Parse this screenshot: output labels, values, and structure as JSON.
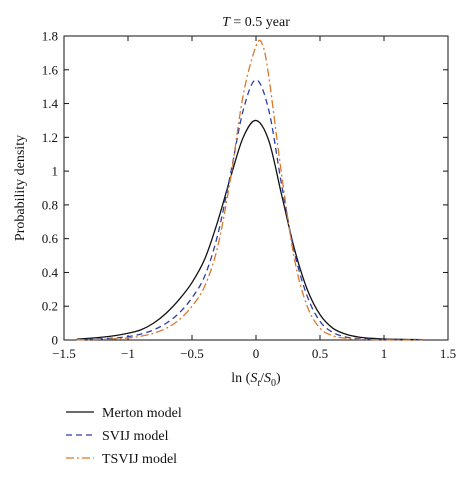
{
  "chart_data": {
    "type": "line",
    "title_var": "T",
    "title_rest": " = 0.5 year",
    "xlabel": "ln (S_t/S_0)",
    "xlabel_parts": {
      "prefix": "ln (",
      "s1": "S",
      "sub1": "t",
      "slash": "/",
      "s2": "S",
      "sub2": "0",
      "suffix": ")"
    },
    "ylabel": "Probability density",
    "xlim": [
      -1.5,
      1.5
    ],
    "ylim": [
      0,
      1.8
    ],
    "xticks": [
      -1.5,
      -1,
      -0.5,
      0,
      0.5,
      1,
      1.5
    ],
    "xtick_labels": [
      "−1.5",
      "−1",
      "−0.5",
      "0",
      "0.5",
      "1",
      "1.5"
    ],
    "yticks": [
      0,
      0.2,
      0.4,
      0.6,
      0.8,
      1,
      1.2,
      1.4,
      1.6,
      1.8
    ],
    "ytick_labels": [
      "0",
      "0.2",
      "0.4",
      "0.6",
      "0.8",
      "1",
      "1.2",
      "1.4",
      "1.6",
      "1.8"
    ],
    "grid": false,
    "legend_position": "below-left",
    "series": [
      {
        "name": "Merton model",
        "color": "#111111",
        "dash": "solid",
        "x": [
          -1.4,
          -1.3,
          -1.2,
          -1.1,
          -1.0,
          -0.9,
          -0.8,
          -0.7,
          -0.6,
          -0.5,
          -0.4,
          -0.3,
          -0.2,
          -0.1,
          0.0,
          0.1,
          0.2,
          0.3,
          0.4,
          0.5,
          0.6,
          0.7,
          0.8,
          0.9,
          1.0,
          1.1,
          1.2,
          1.3
        ],
        "y": [
          0.005,
          0.01,
          0.017,
          0.026,
          0.04,
          0.06,
          0.1,
          0.16,
          0.24,
          0.34,
          0.48,
          0.7,
          0.96,
          1.2,
          1.3,
          1.18,
          0.86,
          0.54,
          0.3,
          0.15,
          0.07,
          0.035,
          0.018,
          0.01,
          0.006,
          0.004,
          0.003,
          0.002
        ]
      },
      {
        "name": "SVIJ model",
        "color": "#2b3fa8",
        "dash": "dashed",
        "x": [
          -1.4,
          -1.3,
          -1.2,
          -1.1,
          -1.0,
          -0.9,
          -0.8,
          -0.7,
          -0.6,
          -0.5,
          -0.4,
          -0.3,
          -0.2,
          -0.1,
          0.0,
          0.1,
          0.2,
          0.3,
          0.4,
          0.5,
          0.6,
          0.7,
          0.8,
          0.9,
          1.0,
          1.1,
          1.2,
          1.3
        ],
        "y": [
          0.002,
          0.004,
          0.007,
          0.012,
          0.02,
          0.035,
          0.06,
          0.1,
          0.16,
          0.25,
          0.38,
          0.62,
          0.98,
          1.36,
          1.54,
          1.36,
          0.92,
          0.52,
          0.26,
          0.11,
          0.045,
          0.018,
          0.008,
          0.004,
          0.002,
          0.001,
          0.001,
          0.0
        ]
      },
      {
        "name": "TSVIJ model",
        "color": "#d9792b",
        "dash": "dashdot",
        "x": [
          -1.4,
          -1.3,
          -1.2,
          -1.1,
          -1.0,
          -0.9,
          -0.8,
          -0.7,
          -0.6,
          -0.5,
          -0.4,
          -0.3,
          -0.2,
          -0.1,
          0.0,
          0.05,
          0.1,
          0.2,
          0.3,
          0.4,
          0.5,
          0.6,
          0.7,
          0.8,
          0.9,
          1.0,
          1.1,
          1.2,
          1.3
        ],
        "y": [
          0.001,
          0.002,
          0.004,
          0.007,
          0.012,
          0.022,
          0.04,
          0.07,
          0.12,
          0.2,
          0.32,
          0.55,
          0.95,
          1.45,
          1.74,
          1.75,
          1.56,
          0.98,
          0.48,
          0.2,
          0.07,
          0.025,
          0.01,
          0.004,
          0.002,
          0.001,
          0.0,
          0.0,
          0.0
        ]
      }
    ]
  }
}
